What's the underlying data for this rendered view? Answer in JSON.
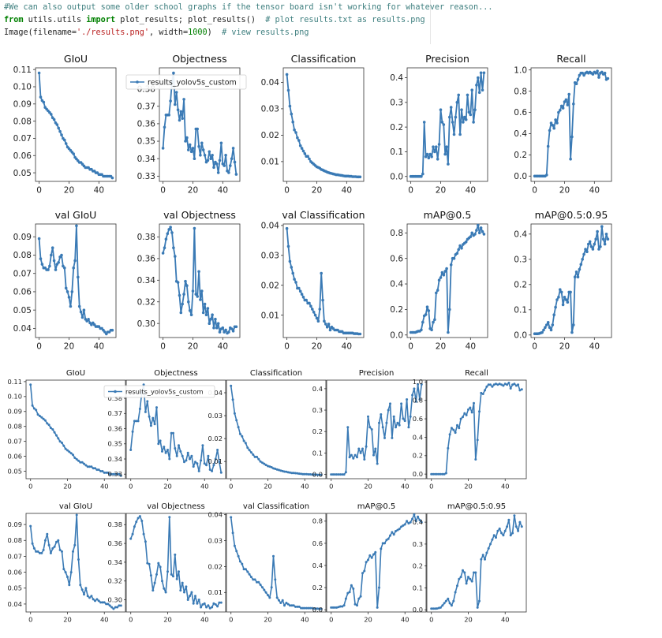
{
  "code": {
    "comment1": "#We can also output some older school graphs if the tensor board isn't working for whatever reason...",
    "l2_from": "from",
    "l2_module": " utils.utils ",
    "l2_import": "import",
    "l2_rest": " plot_results; plot_results()  ",
    "l2_comment": "# plot results.txt as results.png",
    "l3_pre": "Image(filename=",
    "l3_str": "'./results.png'",
    "l3_mid": ", width=",
    "l3_num": "1000",
    "l3_post": ")  ",
    "l3_comment": "# view results.png"
  },
  "colors": {
    "line": "#3a7ab5",
    "axis": "#333333",
    "code_comment": "#408080",
    "code_keyword": "#008000",
    "code_string": "#ba2121"
  },
  "chart_data": {
    "type": "line",
    "legend_label": "results_yolov5s_custom",
    "legend_position": "upper-left of Objectness panel",
    "x": [
      0,
      1,
      2,
      3,
      4,
      5,
      6,
      7,
      8,
      9,
      10,
      11,
      12,
      13,
      14,
      15,
      16,
      17,
      18,
      19,
      20,
      21,
      22,
      23,
      24,
      25,
      26,
      27,
      28,
      29,
      30,
      31,
      32,
      33,
      34,
      35,
      36,
      37,
      38,
      39,
      40,
      41,
      42,
      43,
      44,
      45,
      46,
      47,
      48,
      49
    ],
    "panels": [
      {
        "title": "GIoU",
        "ylim": [
          0.045,
          0.111
        ],
        "yticks": [
          0.05,
          0.06,
          0.07,
          0.08,
          0.09,
          0.1,
          0.11
        ],
        "ytick_labels": [
          "0.05",
          "0.06",
          "0.07",
          "0.08",
          "0.09",
          "0.10",
          "0.11"
        ],
        "values": [
          0.108,
          0.094,
          0.092,
          0.091,
          0.088,
          0.087,
          0.086,
          0.085,
          0.084,
          0.082,
          0.081,
          0.079,
          0.078,
          0.076,
          0.074,
          0.072,
          0.07,
          0.069,
          0.067,
          0.065,
          0.064,
          0.063,
          0.062,
          0.061,
          0.059,
          0.058,
          0.057,
          0.056,
          0.056,
          0.055,
          0.054,
          0.053,
          0.053,
          0.053,
          0.052,
          0.052,
          0.051,
          0.051,
          0.05,
          0.05,
          0.049,
          0.049,
          0.049,
          0.048,
          0.048,
          0.048,
          0.048,
          0.048,
          0.048,
          0.047
        ]
      },
      {
        "title": "Objectness",
        "ylim": [
          0.327,
          0.392
        ],
        "yticks": [
          0.33,
          0.34,
          0.35,
          0.36,
          0.37,
          0.38
        ],
        "ytick_labels": [
          "0.33",
          "0.34",
          "0.35",
          "0.36",
          "0.37",
          "0.38"
        ],
        "values": [
          0.346,
          0.358,
          0.365,
          0.365,
          0.365,
          0.373,
          0.384,
          0.389,
          0.371,
          0.378,
          0.368,
          0.362,
          0.367,
          0.363,
          0.374,
          0.35,
          0.352,
          0.345,
          0.348,
          0.344,
          0.346,
          0.34,
          0.357,
          0.357,
          0.347,
          0.342,
          0.349,
          0.345,
          0.342,
          0.338,
          0.339,
          0.344,
          0.34,
          0.342,
          0.335,
          0.338,
          0.337,
          0.332,
          0.339,
          0.349,
          0.337,
          0.336,
          0.342,
          0.333,
          0.332,
          0.336,
          0.34,
          0.346,
          0.338,
          0.331
        ]
      },
      {
        "title": "Classification",
        "ylim": [
          0.0025,
          0.0455
        ],
        "yticks": [
          0.01,
          0.02,
          0.03,
          0.04
        ],
        "ytick_labels": [
          "0.01",
          "0.02",
          "0.03",
          "0.04"
        ],
        "values": [
          0.043,
          0.037,
          0.031,
          0.028,
          0.025,
          0.022,
          0.021,
          0.019,
          0.018,
          0.016,
          0.015,
          0.014,
          0.013,
          0.012,
          0.012,
          0.011,
          0.01,
          0.0095,
          0.009,
          0.0085,
          0.008,
          0.0078,
          0.0075,
          0.007,
          0.0068,
          0.0065,
          0.0063,
          0.006,
          0.0058,
          0.0056,
          0.0055,
          0.0053,
          0.0052,
          0.005,
          0.005,
          0.0049,
          0.0048,
          0.0047,
          0.0046,
          0.0045,
          0.0045,
          0.0045,
          0.0044,
          0.0044,
          0.0043,
          0.0043,
          0.0043,
          0.0042,
          0.0042,
          0.0042
        ]
      },
      {
        "title": "Precision",
        "ylim": [
          -0.02,
          0.44
        ],
        "yticks": [
          0.0,
          0.1,
          0.2,
          0.3,
          0.4
        ],
        "ytick_labels": [
          "0.0",
          "0.1",
          "0.2",
          "0.3",
          "0.4"
        ],
        "values": [
          0.0,
          0.0,
          0.0,
          0.0,
          0.0,
          0.0,
          0.0,
          0.0,
          0.01,
          0.22,
          0.08,
          0.09,
          0.075,
          0.09,
          0.08,
          0.12,
          0.1,
          0.12,
          0.07,
          0.13,
          0.27,
          0.22,
          0.21,
          0.09,
          0.12,
          0.05,
          0.24,
          0.28,
          0.22,
          0.17,
          0.24,
          0.3,
          0.33,
          0.17,
          0.27,
          0.22,
          0.24,
          0.23,
          0.33,
          0.26,
          0.25,
          0.35,
          0.22,
          0.27,
          0.37,
          0.4,
          0.34,
          0.42,
          0.35,
          0.42
        ]
      },
      {
        "title": "Recall",
        "ylim": [
          -0.05,
          1.02
        ],
        "yticks": [
          0.0,
          0.2,
          0.4,
          0.6,
          0.8,
          1.0
        ],
        "ytick_labels": [
          "0.0",
          "0.2",
          "0.4",
          "0.6",
          "0.8",
          "1.0"
        ],
        "values": [
          0.0,
          0.0,
          0.0,
          0.0,
          0.0,
          0.0,
          0.0,
          0.0,
          0.01,
          0.28,
          0.43,
          0.5,
          0.48,
          0.45,
          0.53,
          0.5,
          0.6,
          0.62,
          0.66,
          0.64,
          0.7,
          0.72,
          0.67,
          0.77,
          0.16,
          0.37,
          0.68,
          0.88,
          0.87,
          0.91,
          0.95,
          0.97,
          0.97,
          0.95,
          0.97,
          0.98,
          0.97,
          0.98,
          0.97,
          0.96,
          0.98,
          0.97,
          0.99,
          0.93,
          0.97,
          0.98,
          0.96,
          0.97,
          0.91,
          0.92
        ]
      },
      {
        "title": "val GIoU",
        "ylim": [
          0.035,
          0.097
        ],
        "yticks": [
          0.04,
          0.05,
          0.06,
          0.07,
          0.08,
          0.09
        ],
        "ytick_labels": [
          "0.04",
          "0.05",
          "0.06",
          "0.07",
          "0.08",
          "0.09"
        ],
        "values": [
          0.089,
          0.078,
          0.075,
          0.073,
          0.073,
          0.072,
          0.072,
          0.074,
          0.08,
          0.084,
          0.077,
          0.072,
          0.075,
          0.076,
          0.079,
          0.08,
          0.074,
          0.073,
          0.062,
          0.06,
          0.057,
          0.052,
          0.06,
          0.073,
          0.077,
          0.096,
          0.068,
          0.052,
          0.049,
          0.046,
          0.05,
          0.045,
          0.044,
          0.045,
          0.043,
          0.042,
          0.043,
          0.042,
          0.041,
          0.041,
          0.041,
          0.04,
          0.04,
          0.039,
          0.038,
          0.037,
          0.038,
          0.038,
          0.039,
          0.039
        ]
      },
      {
        "title": "val Objectness",
        "ylim": [
          0.287,
          0.392
        ],
        "yticks": [
          0.3,
          0.32,
          0.34,
          0.36,
          0.38
        ],
        "ytick_labels": [
          "0.30",
          "0.32",
          "0.34",
          "0.36",
          "0.38"
        ],
        "values": [
          0.365,
          0.37,
          0.378,
          0.383,
          0.387,
          0.389,
          0.384,
          0.37,
          0.362,
          0.339,
          0.338,
          0.326,
          0.31,
          0.318,
          0.327,
          0.339,
          0.335,
          0.32,
          0.312,
          0.308,
          0.33,
          0.388,
          0.327,
          0.325,
          0.348,
          0.322,
          0.33,
          0.31,
          0.318,
          0.308,
          0.314,
          0.3,
          0.304,
          0.308,
          0.296,
          0.304,
          0.296,
          0.3,
          0.292,
          0.295,
          0.296,
          0.292,
          0.294,
          0.291,
          0.292,
          0.296,
          0.295,
          0.293,
          0.297,
          0.297
        ]
      },
      {
        "title": "val Classification",
        "ylim": [
          0.0025,
          0.0405
        ],
        "yticks": [
          0.01,
          0.02,
          0.03,
          0.04
        ],
        "ytick_labels": [
          "0.01",
          "0.02",
          "0.03",
          "0.04"
        ],
        "values": [
          0.039,
          0.033,
          0.028,
          0.026,
          0.024,
          0.022,
          0.021,
          0.019,
          0.019,
          0.018,
          0.017,
          0.016,
          0.015,
          0.015,
          0.014,
          0.014,
          0.013,
          0.012,
          0.011,
          0.01,
          0.009,
          0.008,
          0.012,
          0.024,
          0.015,
          0.008,
          0.007,
          0.006,
          0.007,
          0.005,
          0.006,
          0.0055,
          0.005,
          0.005,
          0.005,
          0.0045,
          0.0045,
          0.0045,
          0.004,
          0.004,
          0.004,
          0.004,
          0.004,
          0.004,
          0.004,
          0.0038,
          0.0038,
          0.0038,
          0.0037,
          0.0037
        ]
      },
      {
        "title": "mAP@0.5",
        "ylim": [
          -0.02,
          0.87
        ],
        "yticks": [
          0.0,
          0.2,
          0.4,
          0.6,
          0.8
        ],
        "ytick_labels": [
          "0.0",
          "0.2",
          "0.4",
          "0.6",
          "0.8"
        ],
        "values": [
          0.02,
          0.02,
          0.02,
          0.02,
          0.025,
          0.03,
          0.03,
          0.04,
          0.1,
          0.15,
          0.16,
          0.22,
          0.19,
          0.05,
          0.04,
          0.1,
          0.12,
          0.33,
          0.35,
          0.43,
          0.45,
          0.49,
          0.47,
          0.5,
          0.52,
          0.02,
          0.2,
          0.55,
          0.6,
          0.6,
          0.63,
          0.64,
          0.67,
          0.7,
          0.68,
          0.71,
          0.72,
          0.73,
          0.75,
          0.76,
          0.77,
          0.8,
          0.78,
          0.79,
          0.82,
          0.86,
          0.8,
          0.84,
          0.81,
          0.79
        ]
      },
      {
        "title": "mAP@0.5:0.95",
        "ylim": [
          -0.01,
          0.44
        ],
        "yticks": [
          0.0,
          0.1,
          0.2,
          0.3,
          0.4
        ],
        "ytick_labels": [
          "0.0",
          "0.1",
          "0.2",
          "0.3",
          "0.4"
        ],
        "values": [
          0.005,
          0.005,
          0.005,
          0.006,
          0.008,
          0.01,
          0.02,
          0.03,
          0.04,
          0.05,
          0.03,
          0.02,
          0.04,
          0.08,
          0.11,
          0.14,
          0.15,
          0.18,
          0.17,
          0.12,
          0.15,
          0.14,
          0.13,
          0.17,
          0.17,
          0.01,
          0.04,
          0.23,
          0.25,
          0.23,
          0.26,
          0.28,
          0.3,
          0.32,
          0.34,
          0.33,
          0.36,
          0.37,
          0.35,
          0.34,
          0.36,
          0.38,
          0.41,
          0.34,
          0.35,
          0.43,
          0.38,
          0.36,
          0.4,
          0.38
        ]
      }
    ],
    "xticks": [
      0,
      20,
      40
    ],
    "xtick_labels": [
      "0",
      "20",
      "40"
    ],
    "grid": false
  }
}
